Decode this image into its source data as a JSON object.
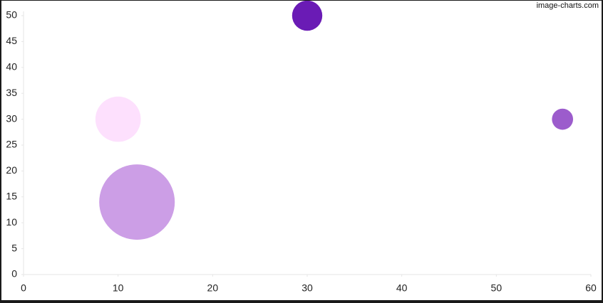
{
  "chart_data": {
    "type": "bubble",
    "watermark": "image-charts.com",
    "x": [
      30,
      10,
      12,
      57
    ],
    "values": [
      50,
      30,
      14,
      30
    ],
    "sizes": [
      20,
      30,
      50,
      14
    ],
    "colors": [
      "#6a1bb5",
      "#fde0fd",
      "#cc9ee6",
      "#9c5ccc"
    ],
    "xlim": [
      0,
      60
    ],
    "xticks": [
      0,
      10,
      20,
      30,
      40,
      50,
      60
    ],
    "ylim": [
      0,
      50
    ],
    "yticks": [
      0,
      5,
      10,
      15,
      20,
      25,
      30,
      35,
      40,
      45,
      50
    ],
    "grid": false
  }
}
